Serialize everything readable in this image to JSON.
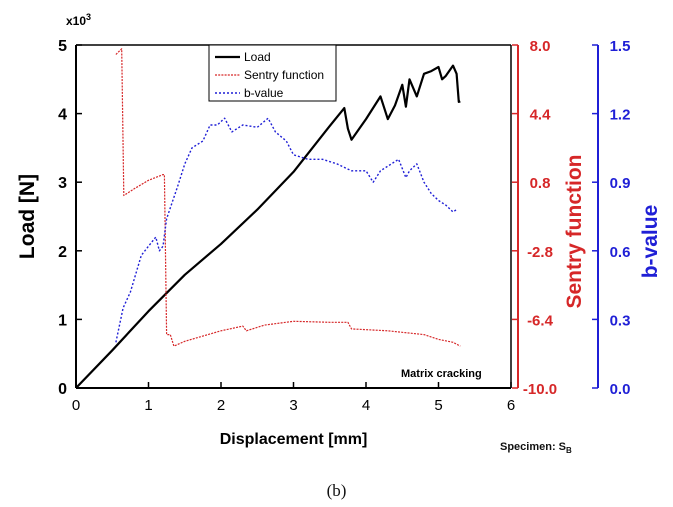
{
  "caption": "(b)",
  "chart_data": {
    "type": "line",
    "xlabel": "Displacement [mm]",
    "ylabel": "Load [N]",
    "y2label": "Sentry function",
    "y3label": "b-value",
    "y_multiplier_label": "x10",
    "y_multiplier_exp": "3",
    "annotation": "Matrix cracking",
    "specimen": {
      "text": "Specimen: S",
      "subscript": "B"
    },
    "xlim": [
      0,
      6
    ],
    "x_ticks": [
      "0",
      "1",
      "2",
      "3",
      "4",
      "5",
      "6"
    ],
    "ylim": [
      0,
      5
    ],
    "y_ticks": [
      "0",
      "1",
      "2",
      "3",
      "4",
      "5"
    ],
    "y2lim": [
      -10,
      8
    ],
    "y2_ticks": [
      "-10.0",
      "-6.4",
      "-2.8",
      "0.8",
      "4.4",
      "8.0"
    ],
    "y3lim": [
      0,
      1.5
    ],
    "y3_ticks": [
      "0.0",
      "0.3",
      "0.6",
      "0.9",
      "1.2",
      "1.5"
    ],
    "legend": "top-center",
    "series": [
      {
        "name": "Load",
        "axis": "y",
        "color": "#000000",
        "x": [
          0,
          0.5,
          1.0,
          1.5,
          2.0,
          2.5,
          3.0,
          3.5,
          3.7,
          3.75,
          3.8,
          4.0,
          4.2,
          4.3,
          4.4,
          4.5,
          4.55,
          4.6,
          4.7,
          4.8,
          4.9,
          5.0,
          5.05,
          5.1,
          5.2,
          5.25,
          5.28,
          5.3
        ],
        "y": [
          0,
          0.55,
          1.12,
          1.65,
          2.1,
          2.6,
          3.15,
          3.82,
          4.08,
          3.78,
          3.62,
          3.92,
          4.25,
          3.92,
          4.12,
          4.42,
          4.1,
          4.5,
          4.25,
          4.58,
          4.62,
          4.68,
          4.5,
          4.55,
          4.7,
          4.58,
          4.17,
          4.18
        ]
      },
      {
        "name": "Sentry function",
        "axis": "y2",
        "color": "#d62728",
        "x": [
          0.55,
          0.63,
          0.66,
          0.8,
          1.0,
          1.2,
          1.22,
          1.25,
          1.3,
          1.35,
          1.5,
          2.0,
          2.3,
          2.35,
          2.6,
          3.0,
          3.5,
          3.75,
          3.8,
          4.3,
          4.8,
          5.0,
          5.2,
          5.3
        ],
        "y": [
          7.5,
          7.8,
          0.1,
          0.45,
          0.9,
          1.2,
          1.2,
          -7.2,
          -7.2,
          -7.8,
          -7.55,
          -7.0,
          -6.75,
          -7.0,
          -6.7,
          -6.5,
          -6.55,
          -6.55,
          -6.9,
          -7.0,
          -7.2,
          -7.45,
          -7.6,
          -7.8
        ]
      },
      {
        "name": "b-value",
        "axis": "y3",
        "color": "#1f1fd6",
        "x": [
          0.55,
          0.65,
          0.75,
          0.9,
          1.0,
          1.1,
          1.15,
          1.2,
          1.25,
          1.4,
          1.5,
          1.6,
          1.75,
          1.85,
          1.95,
          2.05,
          2.15,
          2.3,
          2.5,
          2.65,
          2.75,
          2.9,
          3.0,
          3.2,
          3.4,
          3.6,
          3.8,
          4.0,
          4.1,
          4.2,
          4.35,
          4.45,
          4.55,
          4.6,
          4.7,
          4.8,
          4.9,
          5.0,
          5.1,
          5.2,
          5.25
        ],
        "y": [
          0.2,
          0.35,
          0.42,
          0.58,
          0.62,
          0.66,
          0.6,
          0.62,
          0.74,
          0.88,
          0.98,
          1.05,
          1.08,
          1.15,
          1.15,
          1.18,
          1.12,
          1.15,
          1.14,
          1.18,
          1.12,
          1.08,
          1.02,
          1.0,
          1.0,
          0.98,
          0.95,
          0.95,
          0.9,
          0.95,
          0.98,
          1.0,
          0.92,
          0.95,
          0.98,
          0.9,
          0.85,
          0.82,
          0.8,
          0.77,
          0.78
        ]
      }
    ]
  }
}
